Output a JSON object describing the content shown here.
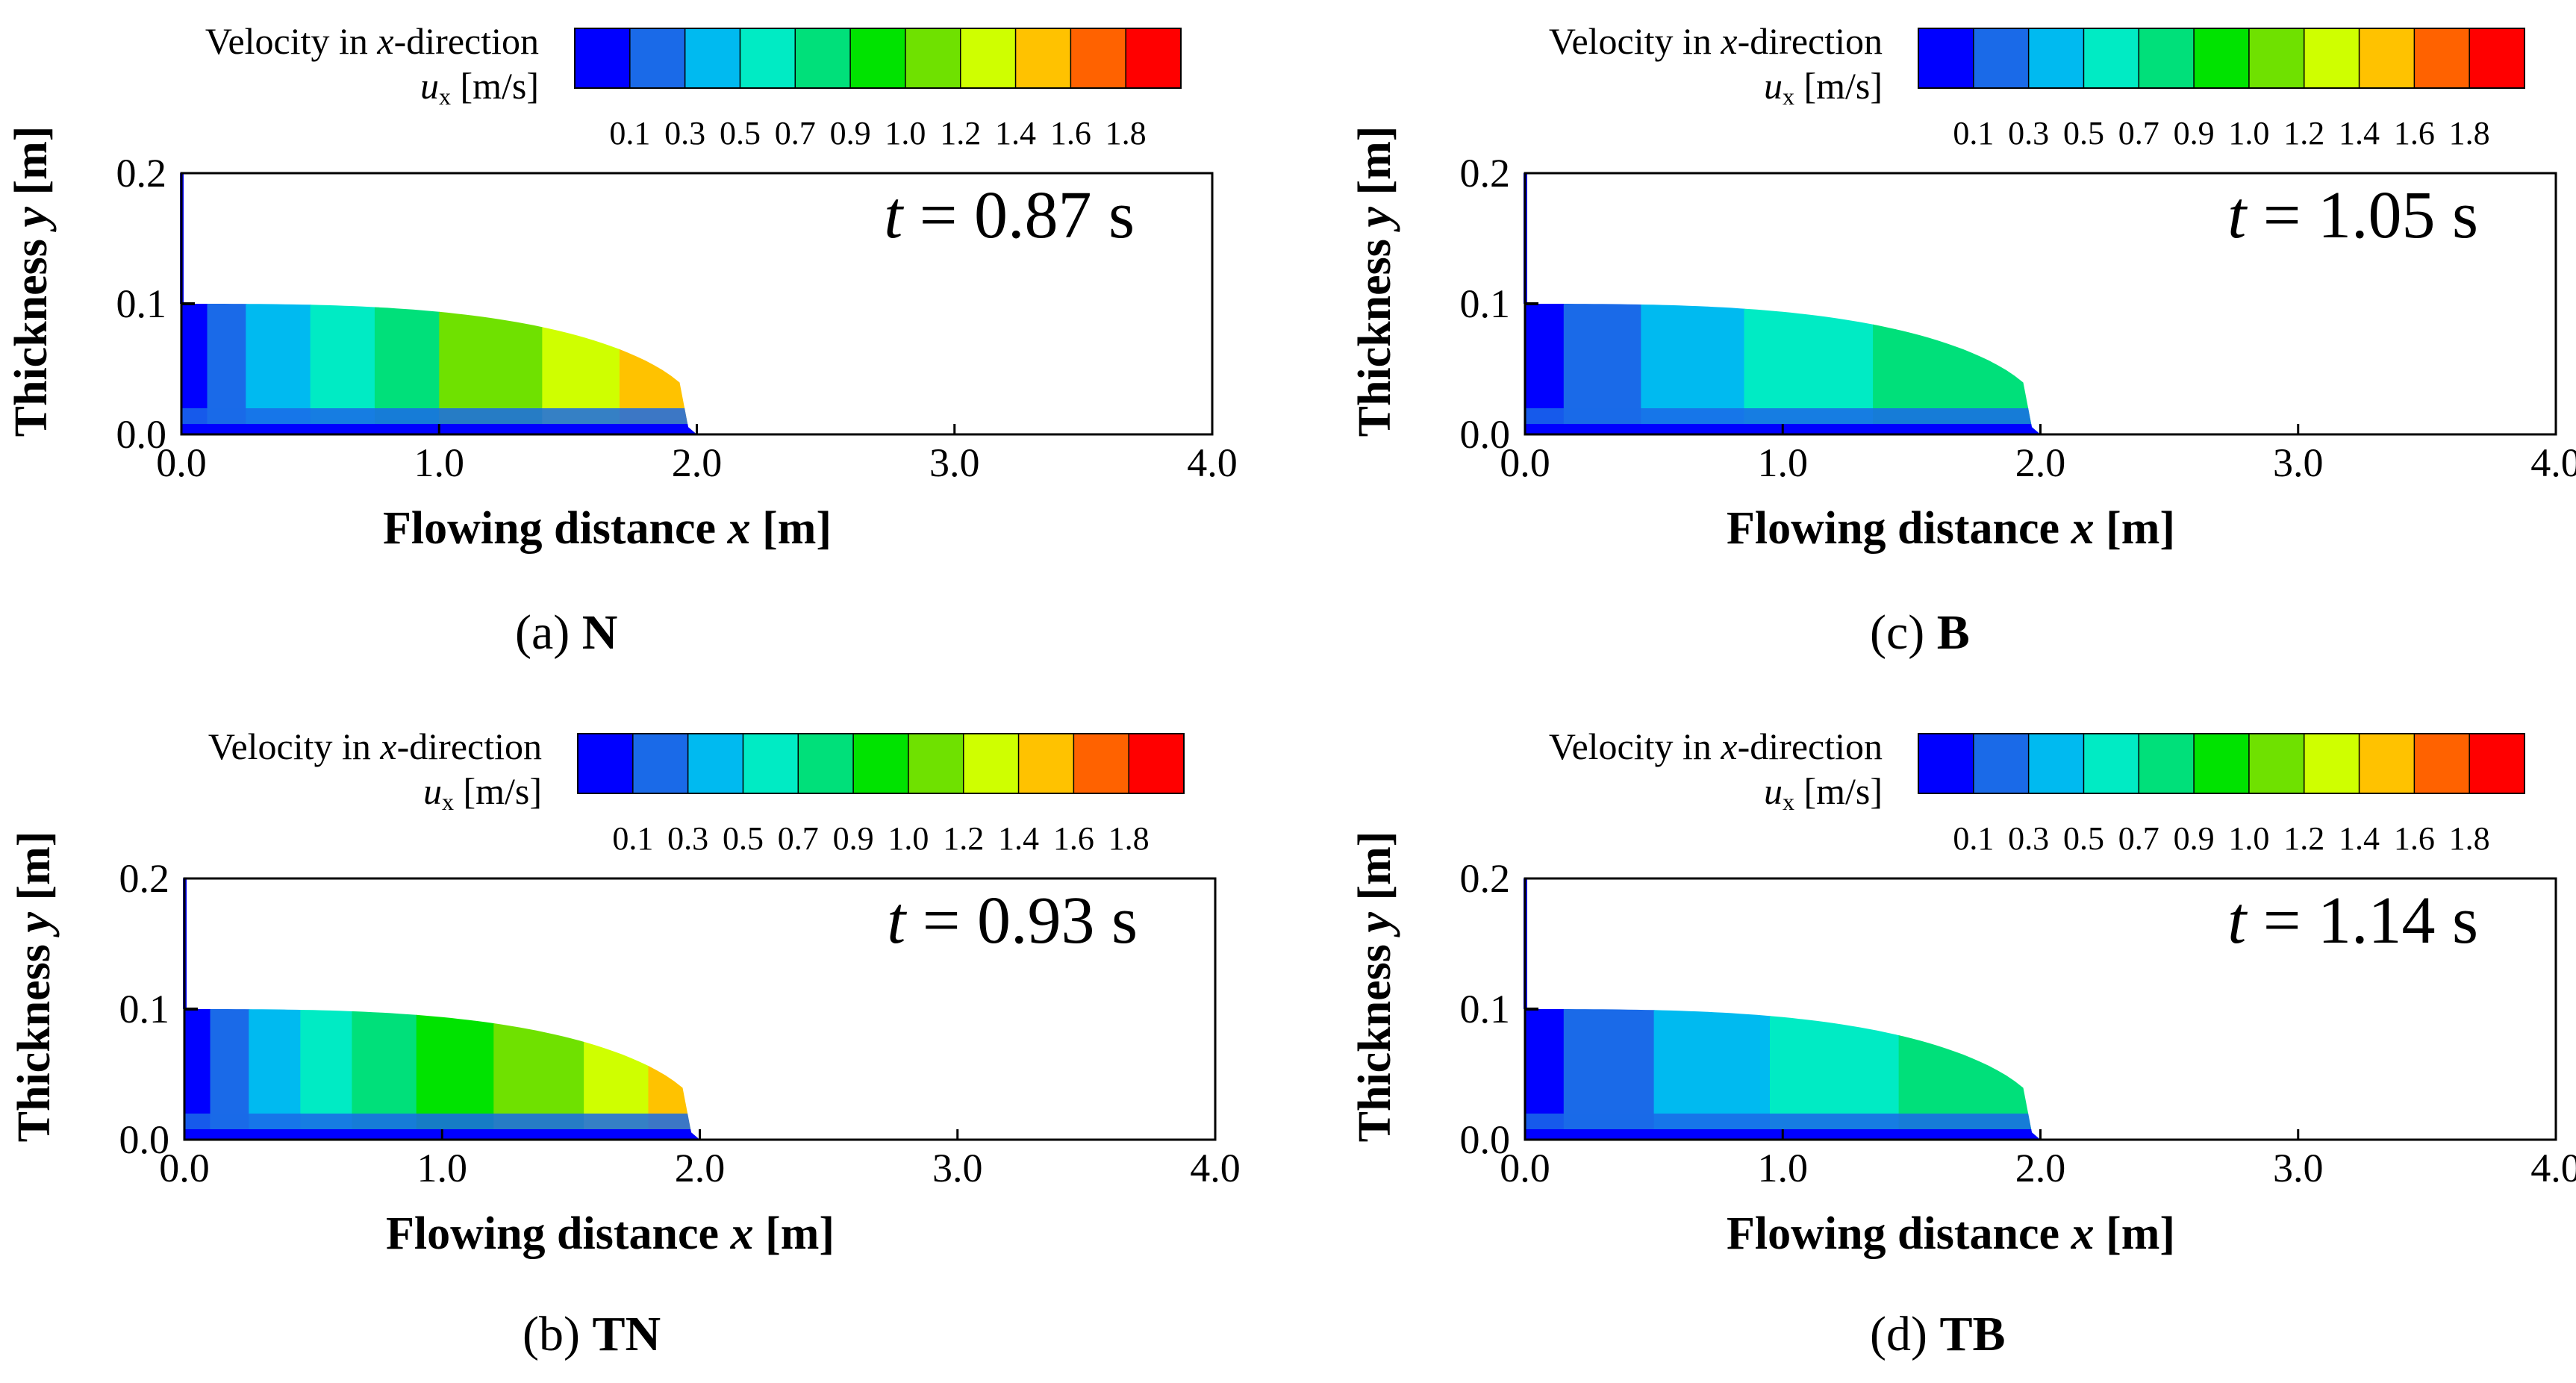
{
  "figure": {
    "legend": {
      "title_line1_a": "Velocity in ",
      "title_line1_var": "x",
      "title_line1_b": "-direction",
      "title_line2_var": "u",
      "title_line2_sub": "x",
      "title_line2_unit": " [m/s]",
      "ticks": [
        "0.1",
        "0.3",
        "0.5",
        "0.7",
        "0.9",
        "1.0",
        "1.2",
        "1.4",
        "1.6",
        "1.8"
      ],
      "colors": [
        "#0000ff",
        "#1a6ae8",
        "#00baf0",
        "#00ebc4",
        "#00e07a",
        "#00e300",
        "#6fe100",
        "#cfff00",
        "#ffc200",
        "#ff6200",
        "#ff0000"
      ]
    },
    "axis": {
      "ylabel_a": "Thickness ",
      "ylabel_var": "y",
      "ylabel_unit": " [m]",
      "xlabel_a": "Flowing distance ",
      "xlabel_var": "x",
      "xlabel_unit": " [m]"
    }
  },
  "chart_data": [
    {
      "type": "heatmap",
      "panel": "a",
      "caption_letter": "(a)",
      "caption_name": "N",
      "time_var": "t",
      "time_text": " = 0.87 s",
      "x_ticks": [
        "0.0",
        "1.0",
        "2.0",
        "3.0",
        "4.0"
      ],
      "y_ticks": [
        "0.0",
        "0.1",
        "0.2"
      ],
      "xlim": [
        0,
        4.0
      ],
      "ylim": [
        0,
        0.2
      ],
      "front_x": 2.0,
      "initial_height": 0.1,
      "boundaries_x": [
        0.1,
        0.25,
        0.5,
        0.75,
        1.0,
        1.4,
        1.7,
        1.85
      ],
      "band_colors": [
        "#0000ff",
        "#1a6ae8",
        "#00baf0",
        "#00ebc4",
        "#00e07a",
        "#6fe100",
        "#cfff00",
        "#ffc200",
        "#ffc200"
      ]
    },
    {
      "type": "heatmap",
      "panel": "b",
      "caption_letter": "(b)",
      "caption_name": "TN",
      "time_var": "t",
      "time_text": " = 0.93 s",
      "x_ticks": [
        "0.0",
        "1.0",
        "2.0",
        "3.0",
        "4.0"
      ],
      "y_ticks": [
        "0.0",
        "0.1",
        "0.2"
      ],
      "xlim": [
        0,
        4.0
      ],
      "ylim": [
        0,
        0.2
      ],
      "front_x": 2.0,
      "initial_height": 0.1,
      "boundaries_x": [
        0.1,
        0.25,
        0.45,
        0.65,
        0.9,
        1.2,
        1.55,
        1.8
      ],
      "band_colors": [
        "#0000ff",
        "#1a6ae8",
        "#00baf0",
        "#00ebc4",
        "#00e07a",
        "#00e300",
        "#6fe100",
        "#cfff00",
        "#ffc200"
      ]
    },
    {
      "type": "heatmap",
      "panel": "c",
      "caption_letter": "(c)",
      "caption_name": "B",
      "time_var": "t",
      "time_text": " = 1.05 s",
      "x_ticks": [
        "0.0",
        "1.0",
        "2.0",
        "3.0",
        "4.0"
      ],
      "y_ticks": [
        "0.0",
        "0.1",
        "0.2"
      ],
      "xlim": [
        0,
        4.0
      ],
      "ylim": [
        0,
        0.2
      ],
      "front_x": 2.0,
      "initial_height": 0.1,
      "boundaries_x": [
        0.15,
        0.45,
        0.85,
        1.35
      ],
      "band_colors": [
        "#0000ff",
        "#1a6ae8",
        "#00baf0",
        "#00ebc4",
        "#00e07a"
      ]
    },
    {
      "type": "heatmap",
      "panel": "d",
      "caption_letter": "(d)",
      "caption_name": "TB",
      "time_var": "t",
      "time_text": " = 1.14 s",
      "x_ticks": [
        "0.0",
        "1.0",
        "2.0",
        "3.0",
        "4.0"
      ],
      "y_ticks": [
        "0.0",
        "0.1",
        "0.2"
      ],
      "xlim": [
        0,
        4.0
      ],
      "ylim": [
        0,
        0.2
      ],
      "front_x": 2.0,
      "initial_height": 0.1,
      "boundaries_x": [
        0.15,
        0.5,
        0.95,
        1.45
      ],
      "band_colors": [
        "#0000ff",
        "#1a6ae8",
        "#00baf0",
        "#00ebc4",
        "#00e07a"
      ]
    }
  ]
}
